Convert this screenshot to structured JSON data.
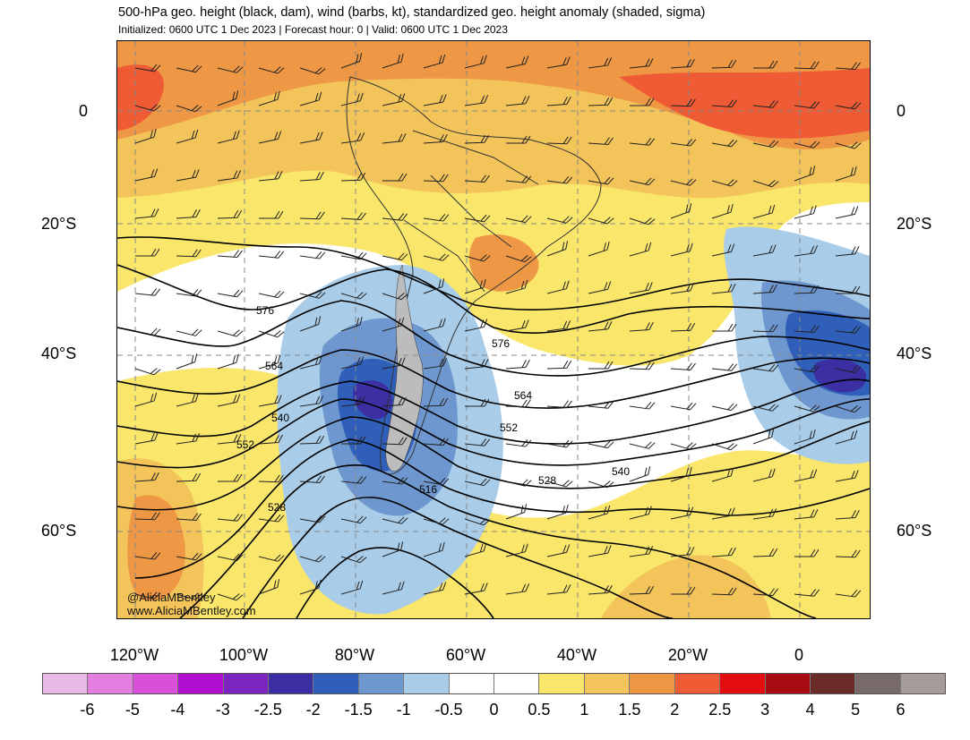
{
  "title": "500-hPa geo. height (black, dam), wind (barbs, kt), standardized geo. height anomaly (shaded, sigma)",
  "subtitle": "Initialized: 0600 UTC 1 Dec 2023 | Forecast hour: 0 | Valid: 0600 UTC 1 Dec 2023",
  "lat_labels": [
    "0",
    "20°S",
    "40°S",
    "60°S"
  ],
  "lon_labels": [
    "120°W",
    "100°W",
    "80°W",
    "60°W",
    "40°W",
    "20°W",
    "0"
  ],
  "contour_labels": [
    "576",
    "576",
    "564",
    "564",
    "552",
    "552",
    "540",
    "540",
    "528",
    "528",
    "516"
  ],
  "credit": [
    "@AliciaMBentley",
    "www.AliciaMBentley.com"
  ],
  "colorbar": {
    "labels": [
      "-6",
      "-5",
      "-4",
      "-3",
      "-2.5",
      "-2",
      "-1.5",
      "-1",
      "-0.5",
      "0",
      "0.5",
      "1",
      "1.5",
      "2",
      "2.5",
      "3",
      "4",
      "5",
      "6"
    ],
    "colors": [
      "#e9b8e6",
      "#e47fe1",
      "#d94fd9",
      "#b10fcf",
      "#7b24c0",
      "#3b2fa3",
      "#2f5fb8",
      "#6f97cf",
      "#a9cce8",
      "#ffffff",
      "#ffffff",
      "#f9e66b",
      "#f3c45a",
      "#ee9744",
      "#ee5b34",
      "#e40d0f",
      "#a80b12",
      "#6b2b28",
      "#7a6b6b",
      "#a69c9c"
    ]
  },
  "colors": {
    "contour": "#000000",
    "grid": "#888888",
    "land_border": "#333333"
  }
}
